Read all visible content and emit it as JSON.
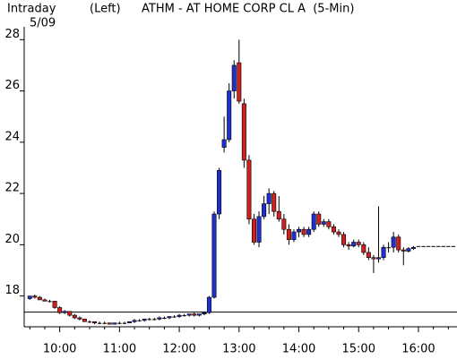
{
  "chart_data": {
    "type": "candlestick",
    "period_label": "Intraday",
    "date": "5/09",
    "axis_side": "(Left)",
    "title": "ATHM - AT HOME CORP CL A  (5-Min)",
    "up_color": "#1f2fd0",
    "down_color": "#d01f1f",
    "reference_line": 17.37,
    "ylim": [
      16.8,
      28.5
    ],
    "yticks": [
      18,
      20,
      22,
      24,
      26,
      28
    ],
    "categories": [
      null,
      null,
      null,
      null,
      null,
      null,
      "10:00",
      null,
      null,
      null,
      null,
      null,
      null,
      null,
      null,
      null,
      null,
      null,
      "11:00",
      null,
      null,
      null,
      null,
      null,
      null,
      null,
      null,
      null,
      null,
      null,
      "12:00",
      null,
      null,
      null,
      null,
      null,
      null,
      null,
      null,
      null,
      null,
      null,
      "13:00",
      null,
      null,
      null,
      null,
      null,
      null,
      null,
      null,
      null,
      null,
      null,
      "14:00",
      null,
      null,
      null,
      null,
      null,
      null,
      null,
      null,
      null,
      null,
      null,
      "15:00",
      null,
      null,
      null,
      null,
      null,
      null,
      null,
      null,
      null,
      null,
      null,
      "16:00",
      null,
      null,
      null,
      null,
      null,
      null,
      null
    ],
    "open": [
      17.9,
      18.0,
      17.95,
      17.85,
      17.8,
      17.8,
      17.55,
      17.35,
      17.4,
      17.25,
      17.15,
      17.1,
      17.0,
      17.0,
      16.95,
      16.95,
      16.95,
      16.9,
      16.95,
      16.95,
      16.95,
      17.0,
      17.05,
      17.05,
      17.1,
      17.1,
      17.1,
      17.15,
      17.15,
      17.2,
      17.2,
      17.25,
      17.25,
      17.3,
      17.25,
      17.3,
      17.35,
      17.95,
      21.2,
      23.8,
      24.1,
      26.0,
      27.1,
      25.5,
      23.3,
      21.0,
      20.1,
      21.1,
      21.6,
      22.0,
      21.3,
      21.0,
      20.6,
      20.2,
      20.5,
      20.6,
      20.4,
      20.6,
      21.2,
      20.8,
      20.9,
      20.7,
      20.5,
      20.4,
      20.0,
      19.95,
      20.1,
      20.0,
      19.7,
      19.5,
      19.45,
      19.5,
      19.9,
      19.9,
      20.3,
      19.8,
      19.75,
      19.85,
      19.95,
      19.95,
      19.95,
      19.95,
      19.95,
      19.95,
      19.95,
      19.95
    ],
    "high": [
      18.0,
      18.05,
      18.0,
      17.9,
      17.85,
      17.8,
      17.6,
      17.45,
      17.4,
      17.3,
      17.2,
      17.1,
      17.05,
      17.0,
      17.0,
      17.0,
      16.95,
      16.95,
      17.0,
      17.0,
      17.0,
      17.1,
      17.1,
      17.1,
      17.15,
      17.15,
      17.2,
      17.2,
      17.2,
      17.25,
      17.3,
      17.3,
      17.3,
      17.35,
      17.3,
      17.4,
      18.0,
      21.3,
      23.0,
      25.0,
      26.3,
      27.2,
      28.0,
      25.7,
      23.5,
      21.2,
      21.3,
      21.9,
      22.2,
      22.1,
      21.9,
      21.2,
      20.8,
      20.6,
      20.7,
      20.7,
      20.7,
      21.3,
      21.3,
      21.0,
      21.0,
      20.8,
      20.6,
      20.5,
      20.1,
      20.2,
      20.2,
      20.1,
      19.9,
      19.6,
      21.5,
      20.0,
      20.1,
      20.5,
      20.4,
      19.9,
      19.9,
      19.95,
      19.95,
      19.95,
      19.95,
      19.95,
      19.95,
      19.95,
      19.95,
      19.95
    ],
    "low": [
      17.85,
      17.9,
      17.85,
      17.8,
      17.75,
      17.5,
      17.3,
      17.3,
      17.2,
      17.1,
      17.05,
      17.0,
      16.95,
      16.9,
      16.9,
      16.9,
      16.9,
      16.9,
      16.9,
      16.9,
      16.95,
      16.95,
      17.0,
      17.0,
      17.05,
      17.05,
      17.05,
      17.1,
      17.1,
      17.15,
      17.15,
      17.2,
      17.2,
      17.2,
      17.2,
      17.25,
      17.3,
      17.9,
      21.0,
      23.6,
      24.0,
      25.7,
      25.5,
      23.0,
      20.8,
      20.0,
      19.9,
      21.0,
      21.2,
      21.1,
      20.9,
      20.4,
      20.0,
      20.1,
      20.3,
      20.3,
      20.3,
      20.5,
      20.7,
      20.7,
      20.6,
      20.4,
      20.3,
      19.9,
      19.8,
      19.9,
      19.9,
      19.6,
      19.4,
      18.9,
      19.3,
      19.4,
      19.7,
      19.7,
      19.7,
      19.2,
      19.7,
      19.8,
      19.95,
      19.95,
      19.95,
      19.95,
      19.95,
      19.95,
      19.95,
      19.95
    ],
    "close": [
      18.0,
      17.95,
      17.85,
      17.8,
      17.8,
      17.55,
      17.35,
      17.4,
      17.25,
      17.15,
      17.1,
      17.0,
      17.0,
      16.95,
      16.95,
      16.95,
      16.9,
      16.95,
      16.95,
      16.95,
      17.0,
      17.05,
      17.05,
      17.1,
      17.1,
      17.1,
      17.15,
      17.15,
      17.2,
      17.2,
      17.25,
      17.25,
      17.3,
      17.25,
      17.3,
      17.35,
      17.95,
      21.2,
      22.9,
      24.1,
      26.0,
      27.0,
      25.6,
      23.3,
      21.0,
      20.1,
      21.1,
      21.6,
      22.0,
      21.3,
      21.0,
      20.6,
      20.2,
      20.5,
      20.6,
      20.4,
      20.6,
      21.2,
      20.8,
      20.9,
      20.7,
      20.5,
      20.4,
      20.0,
      19.95,
      20.1,
      20.0,
      19.7,
      19.5,
      19.45,
      19.5,
      19.9,
      19.9,
      20.3,
      19.8,
      19.75,
      19.85,
      19.9,
      19.95,
      19.95,
      19.95,
      19.95,
      19.95,
      19.95,
      19.95,
      19.95
    ]
  }
}
